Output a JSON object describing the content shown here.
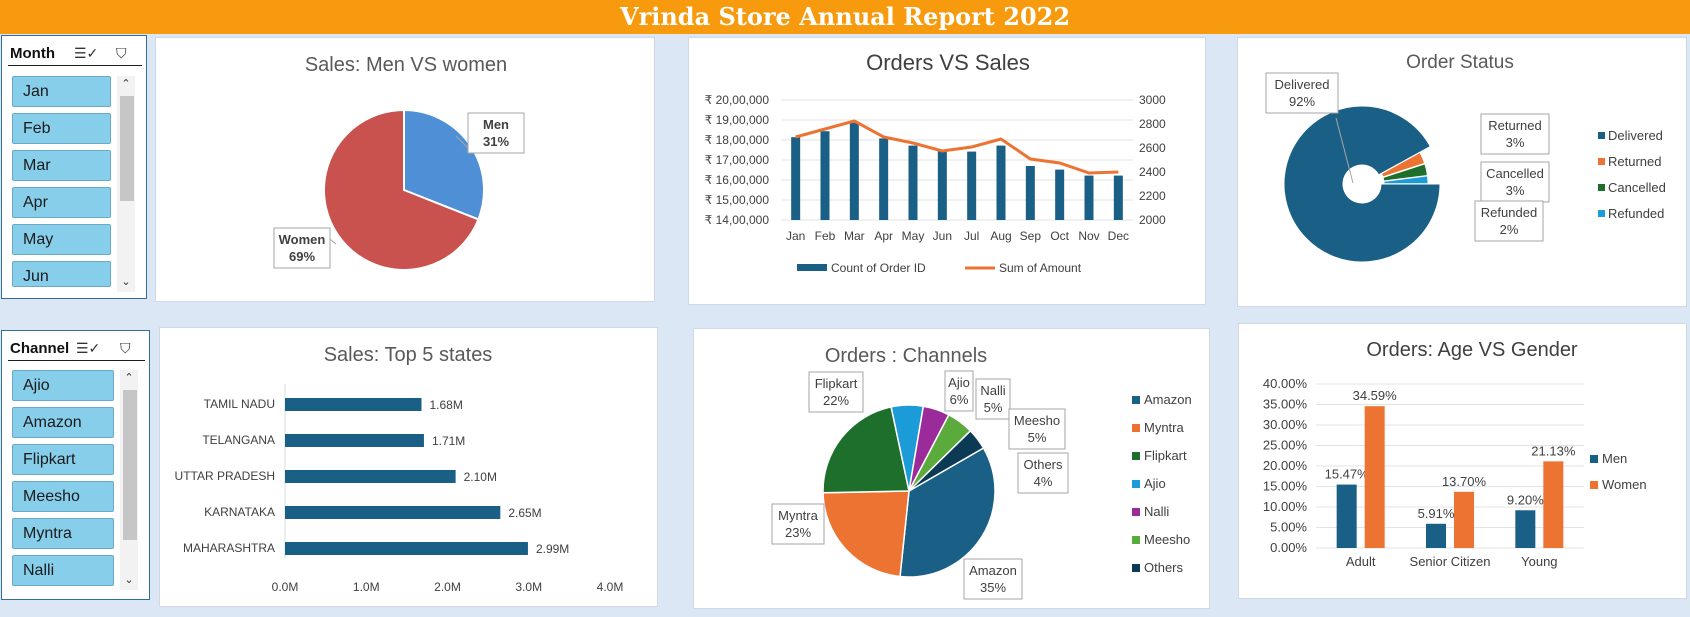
{
  "report_title": "Vrinda Store Annual Report 2022",
  "slicers": {
    "month": {
      "title": "Month",
      "items": [
        "Jan",
        "Feb",
        "Mar",
        "Apr",
        "May",
        "Jun"
      ]
    },
    "channel": {
      "title": "Channel",
      "items": [
        "Ajio",
        "Amazon",
        "Flipkart",
        "Meesho",
        "Myntra",
        "Nalli"
      ]
    }
  },
  "colors": {
    "banner": "#f79a0e",
    "navy": "#1a5f85",
    "orange": "#ec7331",
    "red": "#c9524e",
    "blue": "#4f8fd6",
    "green": "#1d6f2b",
    "cyan": "#1b9bd7",
    "purple": "#9b2b9b",
    "lightgreen": "#5aab3c",
    "darknavy": "#0c3a55"
  },
  "chart_data": [
    {
      "id": "gender",
      "type": "pie",
      "title": "Sales: Men VS women",
      "labels": [
        "Men",
        "Women"
      ],
      "percent_labels": [
        "31%",
        "69%"
      ],
      "values": [
        31,
        69
      ]
    },
    {
      "id": "orders_sales",
      "type": "combo",
      "title": "Orders VS Sales",
      "categories": [
        "Jan",
        "Feb",
        "Mar",
        "Apr",
        "May",
        "Jun",
        "Jul",
        "Aug",
        "Sep",
        "Oct",
        "Nov",
        "Dec"
      ],
      "series": [
        {
          "name": "Count of Order ID",
          "type": "bar",
          "axis": "right",
          "values": [
            2690,
            2740,
            2810,
            2680,
            2620,
            2580,
            2570,
            2620,
            2450,
            2420,
            2370,
            2370
          ]
        },
        {
          "name": "Sum of Amount",
          "type": "line",
          "axis": "left",
          "values": [
            1815000,
            1855000,
            1895000,
            1815000,
            1785000,
            1745000,
            1765000,
            1805000,
            1705000,
            1685000,
            1635000,
            1640000
          ]
        }
      ],
      "y_left_ticks": [
        "₹ 20,00,000",
        "₹ 19,00,000",
        "₹ 18,00,000",
        "₹ 17,00,000",
        "₹ 16,00,000",
        "₹ 15,00,000",
        "₹ 14,00,000"
      ],
      "y_left_range": [
        1400000,
        2000000
      ],
      "y_right_ticks": [
        "3000",
        "2800",
        "2600",
        "2400",
        "2200",
        "2000"
      ],
      "y_right_range": [
        2000,
        3000
      ],
      "legend_position": "bottom"
    },
    {
      "id": "order_status",
      "type": "doughnut",
      "title": "Order Status",
      "labels": [
        "Delivered",
        "Returned",
        "Cancelled",
        "Refunded"
      ],
      "values": [
        92,
        3,
        3,
        2
      ],
      "percent_labels": [
        "92%",
        "3%",
        "3%",
        "2%"
      ],
      "legend_position": "right"
    },
    {
      "id": "top_states",
      "type": "bar",
      "orientation": "horizontal",
      "title": "Sales: Top 5 states",
      "categories": [
        "TAMIL NADU",
        "TELANGANA",
        "UTTAR PRADESH",
        "KARNATAKA",
        "MAHARASHTRA"
      ],
      "values": [
        1.68,
        1.71,
        2.1,
        2.65,
        2.99
      ],
      "value_labels": [
        "1.68M",
        "1.71M",
        "2.10M",
        "2.65M",
        "2.99M"
      ],
      "x_ticks": [
        "0.0M",
        "1.0M",
        "2.0M",
        "3.0M",
        "4.0M"
      ],
      "xlim": [
        0,
        4
      ]
    },
    {
      "id": "channels",
      "type": "pie",
      "title": "Orders : Channels",
      "labels": [
        "Amazon",
        "Myntra",
        "Flipkart",
        "Ajio",
        "Nalli",
        "Meesho",
        "Others"
      ],
      "values": [
        35,
        23,
        22,
        6,
        5,
        5,
        4
      ],
      "percent_labels": [
        "35%",
        "23%",
        "22%",
        "6%",
        "5%",
        "5%",
        "4%"
      ],
      "legend_position": "right"
    },
    {
      "id": "age_gender",
      "type": "bar",
      "title": "Orders: Age VS Gender",
      "categories": [
        "Adult",
        "Senior Citizen",
        "Young"
      ],
      "series": [
        {
          "name": "Men",
          "values": [
            15.47,
            5.91,
            9.2
          ],
          "labels": [
            "15.47%",
            "5.91%",
            "9.20%"
          ]
        },
        {
          "name": "Women",
          "values": [
            34.59,
            13.7,
            21.13
          ],
          "labels": [
            "34.59%",
            "13.70%",
            "21.13%"
          ]
        }
      ],
      "y_ticks": [
        "40.00%",
        "35.00%",
        "30.00%",
        "25.00%",
        "20.00%",
        "15.00%",
        "10.00%",
        "5.00%",
        "0.00%"
      ],
      "ylim": [
        0,
        40
      ],
      "legend_position": "right"
    }
  ]
}
